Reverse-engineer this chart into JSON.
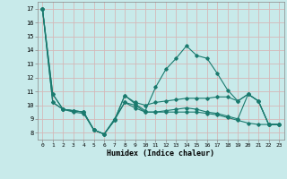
{
  "xlabel": "Humidex (Indice chaleur)",
  "background_color": "#c8eaea",
  "grid_color": "#d4b8b8",
  "line_color": "#1a7a6e",
  "xlim": [
    -0.5,
    23.5
  ],
  "ylim": [
    7.5,
    17.5
  ],
  "xticks": [
    0,
    1,
    2,
    3,
    4,
    5,
    6,
    7,
    8,
    9,
    10,
    11,
    12,
    13,
    14,
    15,
    16,
    17,
    18,
    19,
    20,
    21,
    22,
    23
  ],
  "yticks": [
    8,
    9,
    10,
    11,
    12,
    13,
    14,
    15,
    16,
    17
  ],
  "lines": [
    {
      "x": [
        0,
        1,
        2,
        3,
        4,
        5,
        6,
        7,
        8,
        9,
        10,
        11,
        12,
        13,
        14,
        15,
        16,
        17,
        18,
        19,
        20,
        21,
        22,
        23
      ],
      "y": [
        17,
        10.8,
        9.7,
        9.6,
        9.5,
        8.2,
        7.9,
        8.9,
        10.7,
        10.1,
        9.6,
        11.3,
        12.6,
        13.4,
        14.3,
        13.6,
        13.4,
        12.3,
        11.1,
        10.3,
        10.8,
        10.3,
        8.6,
        8.6
      ]
    },
    {
      "x": [
        0,
        1,
        2,
        3,
        4,
        5,
        6,
        7,
        8,
        9,
        10,
        11,
        12,
        13,
        14,
        15,
        16,
        17,
        18,
        19,
        20,
        21,
        22,
        23
      ],
      "y": [
        17,
        10.8,
        9.7,
        9.6,
        9.5,
        8.2,
        7.9,
        8.9,
        10.7,
        10.2,
        10.0,
        10.2,
        10.3,
        10.4,
        10.5,
        10.5,
        10.5,
        10.6,
        10.6,
        10.3,
        10.8,
        10.3,
        8.6,
        8.6
      ]
    },
    {
      "x": [
        0,
        1,
        2,
        3,
        4,
        5,
        6,
        7,
        8,
        9,
        10,
        11,
        12,
        13,
        14,
        15,
        16,
        17,
        18,
        19,
        20,
        21,
        22,
        23
      ],
      "y": [
        17,
        10.2,
        9.7,
        9.5,
        9.4,
        8.2,
        7.9,
        8.9,
        10.2,
        9.8,
        9.5,
        9.5,
        9.5,
        9.5,
        9.5,
        9.5,
        9.4,
        9.3,
        9.1,
        8.9,
        8.7,
        8.6,
        8.6,
        8.6
      ]
    },
    {
      "x": [
        0,
        1,
        2,
        3,
        4,
        5,
        6,
        7,
        8,
        9,
        10,
        11,
        12,
        13,
        14,
        15,
        16,
        17,
        18,
        19,
        20,
        21,
        22,
        23
      ],
      "y": [
        17,
        10.2,
        9.7,
        9.6,
        9.5,
        8.2,
        7.9,
        9.0,
        10.2,
        10.0,
        9.5,
        9.5,
        9.6,
        9.7,
        9.8,
        9.7,
        9.5,
        9.4,
        9.2,
        9.0,
        10.8,
        10.3,
        8.6,
        8.6
      ]
    }
  ]
}
